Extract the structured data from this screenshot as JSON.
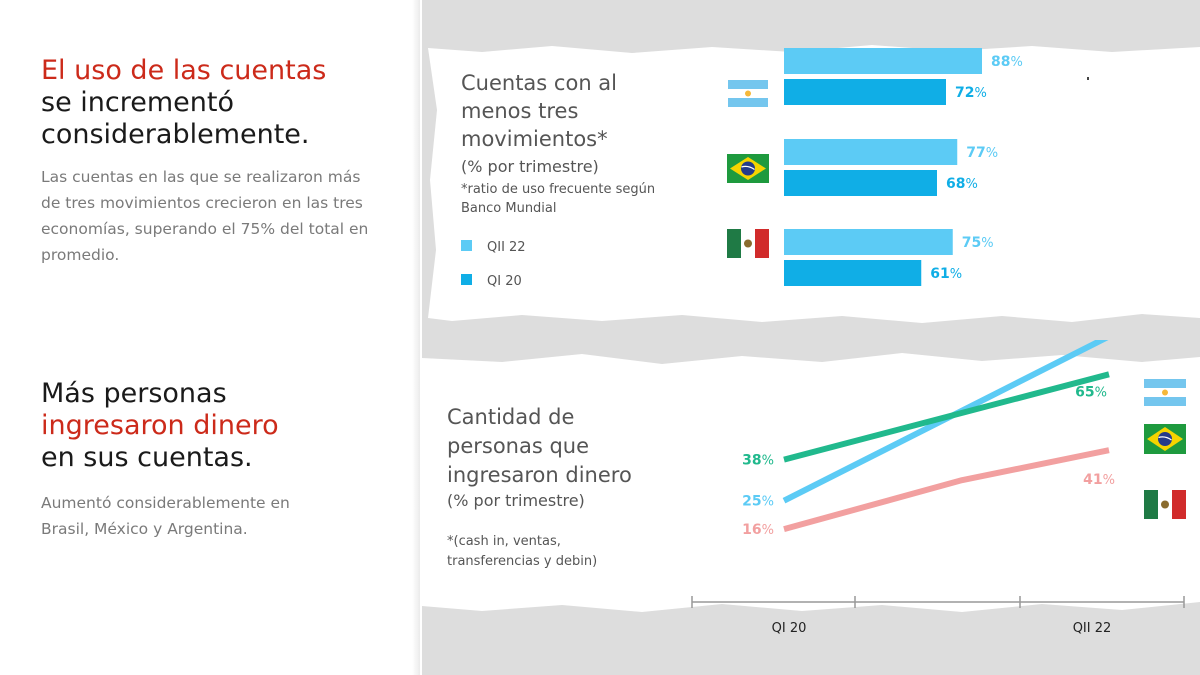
{
  "left": {
    "section1": {
      "heading_red": "El uso de las cuentas",
      "heading_line2": "se incrementó",
      "heading_line3": "considerablemente.",
      "paragraph": "Las cuentas en las que se realizaron más de tres movimientos crecieron en las tres economías, superando el 75% del total en promedio."
    },
    "section2": {
      "heading_line1": "Más personas",
      "heading_red": "ingresaron dinero",
      "heading_line3": "en sus cuentas.",
      "paragraph": "Aumentó considerablemente en Brasil, México y Argentina."
    }
  },
  "colors": {
    "accent_red": "#cc2a1a",
    "qii22": "#5ccbf5",
    "qi20": "#10aee6",
    "argentina": "#5ccbf5",
    "brasil": "#21b98d",
    "mexico": "#f2a0a0"
  },
  "flags": {
    "argentina": "argentina-flag",
    "brasil": "brasil-flag",
    "mexico": "mexico-flag"
  },
  "chart_data": [
    {
      "type": "bar",
      "orientation": "horizontal",
      "title_lines": [
        "Cuentas con al",
        "menos tres",
        "movimientos*"
      ],
      "subtitle": "(% por trimestre)",
      "note_lines": [
        "*ratio de uso frecuente según",
        "Banco Mundial"
      ],
      "categories": [
        "Argentina",
        "Brasil",
        "México"
      ],
      "series": [
        {
          "name": "QII 22",
          "values": [
            88,
            77,
            75
          ]
        },
        {
          "name": "QI 20",
          "values": [
            72,
            68,
            61
          ]
        }
      ],
      "value_suffix": "%",
      "legend": "left-bottom"
    },
    {
      "type": "line",
      "title_lines": [
        "Cantidad de",
        "personas que",
        "ingresaron dinero"
      ],
      "subtitle": "(% por trimestre)",
      "note_lines": [
        "*(cash in, ventas,",
        "transferencias y debin)"
      ],
      "x_labels": [
        "QI 20",
        "QII 22"
      ],
      "series": [
        {
          "name": "Argentina",
          "values": [
            25,
            77
          ]
        },
        {
          "name": "Brasil",
          "values": [
            38,
            65
          ]
        },
        {
          "name": "México",
          "values": [
            16,
            41
          ]
        }
      ],
      "value_suffix": "%"
    }
  ]
}
